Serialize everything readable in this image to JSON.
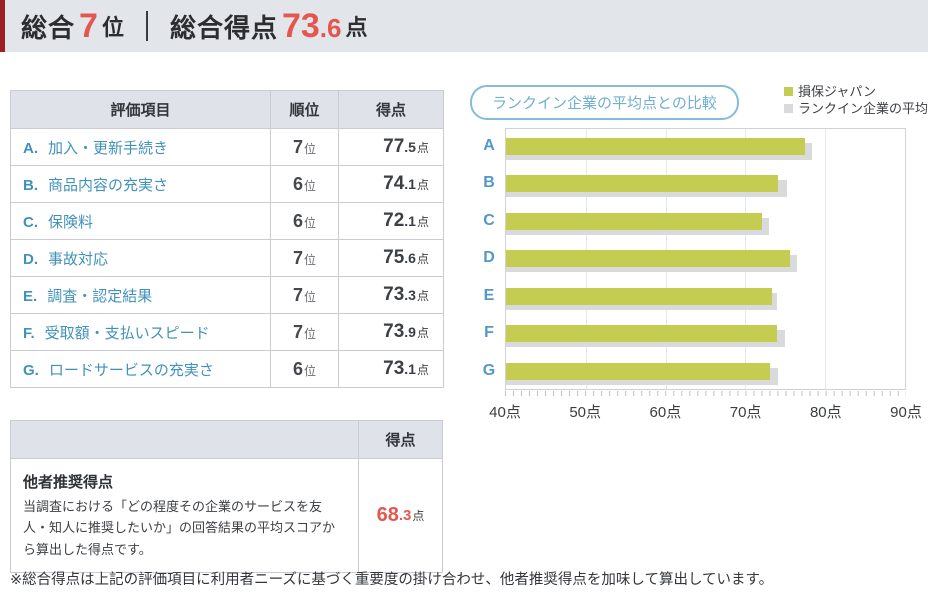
{
  "header": {
    "overall_rank_label": "総合",
    "overall_rank_value": "7",
    "overall_rank_unit": "位",
    "overall_score_label": "総合得点",
    "overall_score_int": "73",
    "overall_score_frac": ".6",
    "overall_score_unit": "点",
    "accent_color": "#e4574e",
    "bar_color": "#9b1f23"
  },
  "eval_table": {
    "headers": [
      "評価項目",
      "順位",
      "得点"
    ],
    "rank_unit": "位",
    "score_unit": "点",
    "rows": [
      {
        "letter": "A.",
        "label": "加入・更新手続き",
        "rank": "7",
        "score_int": "77",
        "score_frac": ".5"
      },
      {
        "letter": "B.",
        "label": "商品内容の充実さ",
        "rank": "6",
        "score_int": "74",
        "score_frac": ".1"
      },
      {
        "letter": "C.",
        "label": "保険料",
        "rank": "6",
        "score_int": "72",
        "score_frac": ".1"
      },
      {
        "letter": "D.",
        "label": "事故対応",
        "rank": "7",
        "score_int": "75",
        "score_frac": ".6"
      },
      {
        "letter": "E.",
        "label": "調査・認定結果",
        "rank": "7",
        "score_int": "73",
        "score_frac": ".3"
      },
      {
        "letter": "F.",
        "label": "受取額・支払いスピード",
        "rank": "7",
        "score_int": "73",
        "score_frac": ".9"
      },
      {
        "letter": "G.",
        "label": "ロードサービスの充実さ",
        "rank": "6",
        "score_int": "73",
        "score_frac": ".1"
      }
    ]
  },
  "rec_table": {
    "header_score": "得点",
    "title": "他者推奨得点",
    "description": "当調査における「どの程度その企業のサービスを友人・知人に推奨したいか」の回答結果の平均スコアから算出した得点です。",
    "score_int": "68",
    "score_frac": ".3",
    "score_unit": "点"
  },
  "footnote": "※総合得点は上記の評価項目に利用者ニーズに基づく重要度の掛け合わせ、他者推奨得点を加味して算出しています。",
  "chart_data": {
    "type": "bar",
    "orientation": "horizontal",
    "title": "ランクイン企業の平均点との比較",
    "categories": [
      "A",
      "B",
      "C",
      "D",
      "E",
      "F",
      "G"
    ],
    "series": [
      {
        "name": "損保ジャパン",
        "color": "#c4cd52",
        "values": [
          77.5,
          74.1,
          72.1,
          75.6,
          73.3,
          73.9,
          73.1
        ]
      },
      {
        "name": "ランクイン企業の平均",
        "color": "#d9dadb",
        "values": [
          78.4,
          75.2,
          72.9,
          76.5,
          74.0,
          74.9,
          74.1
        ]
      }
    ],
    "xlim": [
      40,
      90
    ],
    "x_tick_labels": [
      "40点",
      "50点",
      "60点",
      "70点",
      "80点",
      "90点"
    ],
    "grid": true,
    "legend_position": "top-right"
  }
}
